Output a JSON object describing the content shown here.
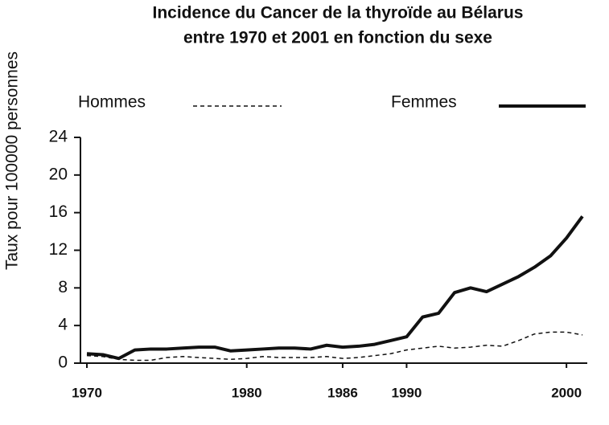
{
  "chart_data": {
    "type": "line",
    "title": [
      "Incidence du Cancer de la thyroïde au Bélarus",
      "entre 1970 et 2001 en fonction du sexe"
    ],
    "y_label": "Taux pour 100000 personnes",
    "x": [
      1970,
      1971,
      1972,
      1973,
      1974,
      1975,
      1976,
      1977,
      1978,
      1979,
      1980,
      1981,
      1982,
      1983,
      1984,
      1985,
      1986,
      1987,
      1988,
      1989,
      1990,
      1991,
      1992,
      1993,
      1994,
      1995,
      1996,
      1997,
      1998,
      1999,
      2000,
      2001
    ],
    "series": [
      {
        "name": "Hommes",
        "color": "#111111",
        "dashed": true,
        "values": [
          0.8,
          0.7,
          0.4,
          0.3,
          0.3,
          0.6,
          0.7,
          0.6,
          0.5,
          0.4,
          0.5,
          0.7,
          0.6,
          0.6,
          0.6,
          0.7,
          0.5,
          0.6,
          0.8,
          1.0,
          1.4,
          1.6,
          1.8,
          1.6,
          1.7,
          1.9,
          1.8,
          2.4,
          3.1,
          3.3,
          3.3,
          3.0
        ]
      },
      {
        "name": "Femmes",
        "color": "#111111",
        "dashed": false,
        "values": [
          1.0,
          0.9,
          0.5,
          1.4,
          1.5,
          1.5,
          1.6,
          1.7,
          1.7,
          1.3,
          1.4,
          1.5,
          1.6,
          1.6,
          1.5,
          1.9,
          1.7,
          1.8,
          2.0,
          2.4,
          2.8,
          4.9,
          5.3,
          7.5,
          8.0,
          7.6,
          8.4,
          9.2,
          10.2,
          11.4,
          13.3,
          15.6
        ]
      }
    ],
    "xlim": [
      1970,
      2001
    ],
    "xticks": [
      1970,
      1980,
      1986,
      1990,
      2000
    ],
    "ylim": [
      0,
      24
    ],
    "yticks": [
      0,
      4,
      8,
      12,
      16,
      20,
      24
    ],
    "grid": false
  }
}
